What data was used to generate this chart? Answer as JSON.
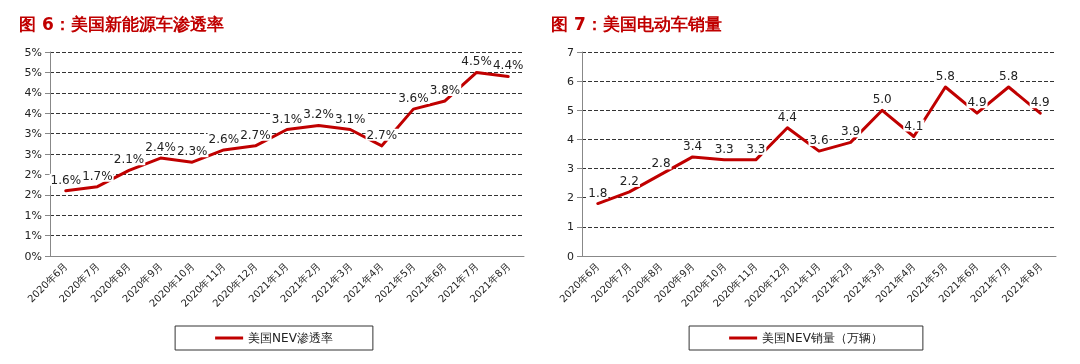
{
  "chart_data": [
    {
      "type": "line",
      "title": "图 6：美国新能源车渗透率",
      "categories": [
        "2020年6月",
        "2020年7月",
        "2020年8月",
        "2020年9月",
        "2020年10月",
        "2020年11月",
        "2020年12月",
        "2021年1月",
        "2021年2月",
        "2021年3月",
        "2021年4月",
        "2021年5月",
        "2021年6月",
        "2021年7月",
        "2021年8月"
      ],
      "series": [
        {
          "name": "美国NEV渗透率",
          "color": "#c00000",
          "values": [
            1.6,
            1.7,
            2.1,
            2.4,
            2.3,
            2.6,
            2.7,
            3.1,
            3.2,
            3.1,
            2.7,
            3.6,
            3.8,
            4.5,
            4.4
          ],
          "value_labels": [
            "1.6%",
            "1.7%",
            "2.1%",
            "2.4%",
            "2.3%",
            "2.6%",
            "2.7%",
            "3.1%",
            "3.2%",
            "3.1%",
            "2.7%",
            "3.6%",
            "3.8%",
            "4.5%",
            "4.4%"
          ]
        }
      ],
      "ylim": [
        0,
        5
      ],
      "yticks": [
        {
          "value": 0,
          "label": "0%"
        },
        {
          "value": 0.5,
          "label": "1%"
        },
        {
          "value": 1,
          "label": "1%"
        },
        {
          "value": 1.5,
          "label": "2%"
        },
        {
          "value": 2,
          "label": "2%"
        },
        {
          "value": 2.5,
          "label": "3%"
        },
        {
          "value": 3,
          "label": "3%"
        },
        {
          "value": 3.5,
          "label": "4%"
        },
        {
          "value": 4,
          "label": "4%"
        },
        {
          "value": 4.5,
          "label": "5%"
        },
        {
          "value": 5,
          "label": "5%"
        }
      ],
      "grid": "y",
      "legend": "bottom",
      "marker": "none",
      "line_style": "solid"
    },
    {
      "type": "line",
      "title": "图 7：美国电动车销量",
      "categories": [
        "2020年6月",
        "2020年7月",
        "2020年8月",
        "2020年9月",
        "2020年10月",
        "2020年11月",
        "2020年12月",
        "2021年1月",
        "2021年2月",
        "2021年3月",
        "2021年4月",
        "2021年5月",
        "2021年6月",
        "2021年7月",
        "2021年8月"
      ],
      "series": [
        {
          "name": "美国NEV销量（万辆）",
          "color": "#c00000",
          "values": [
            1.8,
            2.2,
            2.8,
            3.4,
            3.3,
            3.3,
            4.4,
            3.6,
            3.9,
            5.0,
            4.1,
            5.8,
            4.9,
            5.8,
            4.9
          ],
          "value_labels": [
            "1.8",
            "2.2",
            "2.8",
            "3.4",
            "3.3",
            "3.3",
            "4.4",
            "3.6",
            "3.9",
            "5.0",
            "4.1",
            "5.8",
            "4.9",
            "5.8",
            "4.9"
          ]
        }
      ],
      "ylim": [
        0,
        7
      ],
      "yticks": [
        0,
        1,
        2,
        3,
        4,
        5,
        6,
        7
      ],
      "grid": "y",
      "legend": "bottom",
      "marker": "none",
      "line_style": "solid"
    }
  ]
}
